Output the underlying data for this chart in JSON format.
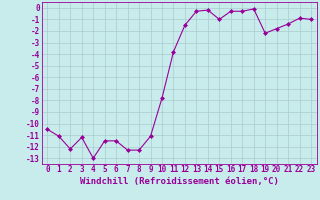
{
  "x": [
    0,
    1,
    2,
    3,
    4,
    5,
    6,
    7,
    8,
    9,
    10,
    11,
    12,
    13,
    14,
    15,
    16,
    17,
    18,
    19,
    20,
    21,
    22,
    23
  ],
  "y": [
    -10.5,
    -11.1,
    -12.2,
    -11.2,
    -13.0,
    -11.5,
    -11.5,
    -12.3,
    -12.3,
    -11.1,
    -7.8,
    -3.8,
    -1.5,
    -0.3,
    -0.2,
    -1.0,
    -0.3,
    -0.3,
    -0.1,
    -2.2,
    -1.8,
    -1.4,
    -0.9,
    -1.0
  ],
  "line_color": "#990099",
  "marker_color": "#990099",
  "bg_color": "#c8ecec",
  "grid_color": "#aacccc",
  "axis_color": "#990099",
  "xlabel": "Windchill (Refroidissement éolien,°C)",
  "xlabel_fontsize": 6.5,
  "tick_fontsize": 5.5,
  "ylim": [
    -13.5,
    0.5
  ],
  "xlim": [
    -0.5,
    23.5
  ],
  "yticks": [
    0,
    -1,
    -2,
    -3,
    -4,
    -5,
    -6,
    -7,
    -8,
    -9,
    -10,
    -11,
    -12,
    -13
  ],
  "xticks": [
    0,
    1,
    2,
    3,
    4,
    5,
    6,
    7,
    8,
    9,
    10,
    11,
    12,
    13,
    14,
    15,
    16,
    17,
    18,
    19,
    20,
    21,
    22,
    23
  ]
}
